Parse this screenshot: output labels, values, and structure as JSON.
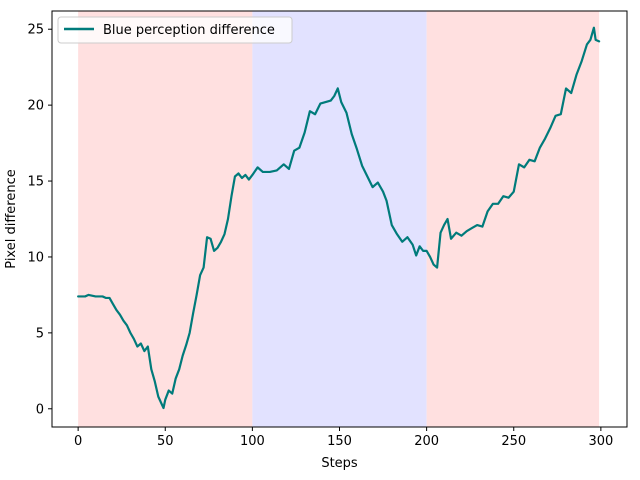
{
  "chart_data": {
    "type": "line",
    "title": "",
    "xlabel": "Steps",
    "ylabel": "Pixel difference",
    "xlim": [
      -15,
      315
    ],
    "ylim": [
      -1.2,
      26.2
    ],
    "xticks": [
      0,
      50,
      100,
      150,
      200,
      250,
      300
    ],
    "yticks": [
      0,
      5,
      10,
      15,
      20,
      25
    ],
    "grid": false,
    "legend": "upper-left",
    "background_bands": [
      {
        "x0": 0,
        "x1": 100,
        "color": "#ffe0e0"
      },
      {
        "x0": 100,
        "x1": 200,
        "color": "#e2e2ff"
      },
      {
        "x0": 200,
        "x1": 299,
        "color": "#ffe0e0"
      }
    ],
    "series": [
      {
        "name": "Blue perception difference",
        "color": "#007b7b",
        "points": [
          [
            0,
            7.4
          ],
          [
            4,
            7.4
          ],
          [
            6,
            7.5
          ],
          [
            10,
            7.4
          ],
          [
            14,
            7.4
          ],
          [
            16,
            7.3
          ],
          [
            18,
            7.3
          ],
          [
            20,
            6.9
          ],
          [
            22,
            6.5
          ],
          [
            24,
            6.2
          ],
          [
            26,
            5.8
          ],
          [
            28,
            5.5
          ],
          [
            30,
            5.0
          ],
          [
            32,
            4.6
          ],
          [
            34,
            4.1
          ],
          [
            36,
            4.3
          ],
          [
            38,
            3.8
          ],
          [
            40,
            4.1
          ],
          [
            42,
            2.6
          ],
          [
            44,
            1.8
          ],
          [
            46,
            0.8
          ],
          [
            48,
            0.3
          ],
          [
            49,
            0.05
          ],
          [
            50,
            0.6
          ],
          [
            52,
            1.2
          ],
          [
            54,
            1.0
          ],
          [
            56,
            2.0
          ],
          [
            58,
            2.6
          ],
          [
            60,
            3.5
          ],
          [
            62,
            4.2
          ],
          [
            64,
            5.0
          ],
          [
            66,
            6.3
          ],
          [
            68,
            7.5
          ],
          [
            70,
            8.8
          ],
          [
            72,
            9.3
          ],
          [
            74,
            11.3
          ],
          [
            76,
            11.2
          ],
          [
            78,
            10.4
          ],
          [
            80,
            10.6
          ],
          [
            82,
            11.0
          ],
          [
            84,
            11.5
          ],
          [
            86,
            12.5
          ],
          [
            88,
            14.0
          ],
          [
            90,
            15.3
          ],
          [
            92,
            15.5
          ],
          [
            94,
            15.2
          ],
          [
            96,
            15.4
          ],
          [
            98,
            15.1
          ],
          [
            100,
            15.4
          ],
          [
            103,
            15.9
          ],
          [
            106,
            15.6
          ],
          [
            110,
            15.6
          ],
          [
            114,
            15.7
          ],
          [
            118,
            16.1
          ],
          [
            121,
            15.8
          ],
          [
            124,
            17.0
          ],
          [
            127,
            17.2
          ],
          [
            130,
            18.2
          ],
          [
            133,
            19.6
          ],
          [
            136,
            19.4
          ],
          [
            139,
            20.1
          ],
          [
            142,
            20.2
          ],
          [
            145,
            20.3
          ],
          [
            147,
            20.6
          ],
          [
            149,
            21.1
          ],
          [
            151,
            20.2
          ],
          [
            154,
            19.5
          ],
          [
            157,
            18.1
          ],
          [
            160,
            17.1
          ],
          [
            163,
            16.0
          ],
          [
            166,
            15.3
          ],
          [
            169,
            14.6
          ],
          [
            172,
            14.9
          ],
          [
            175,
            14.3
          ],
          [
            177,
            13.7
          ],
          [
            180,
            12.1
          ],
          [
            183,
            11.5
          ],
          [
            186,
            11.0
          ],
          [
            189,
            11.3
          ],
          [
            192,
            10.8
          ],
          [
            194,
            10.1
          ],
          [
            196,
            10.7
          ],
          [
            198,
            10.4
          ],
          [
            200,
            10.4
          ],
          [
            202,
            10.0
          ],
          [
            204,
            9.5
          ],
          [
            206,
            9.3
          ],
          [
            208,
            11.6
          ],
          [
            210,
            12.1
          ],
          [
            212,
            12.5
          ],
          [
            214,
            11.2
          ],
          [
            217,
            11.6
          ],
          [
            220,
            11.4
          ],
          [
            223,
            11.7
          ],
          [
            226,
            11.9
          ],
          [
            229,
            12.1
          ],
          [
            232,
            12.0
          ],
          [
            235,
            13.0
          ],
          [
            238,
            13.5
          ],
          [
            241,
            13.5
          ],
          [
            244,
            14.0
          ],
          [
            247,
            13.9
          ],
          [
            250,
            14.3
          ],
          [
            253,
            16.1
          ],
          [
            256,
            15.9
          ],
          [
            259,
            16.4
          ],
          [
            262,
            16.3
          ],
          [
            265,
            17.2
          ],
          [
            268,
            17.8
          ],
          [
            271,
            18.5
          ],
          [
            274,
            19.3
          ],
          [
            277,
            19.4
          ],
          [
            280,
            21.1
          ],
          [
            283,
            20.8
          ],
          [
            286,
            22.0
          ],
          [
            289,
            22.9
          ],
          [
            292,
            24.0
          ],
          [
            294,
            24.3
          ],
          [
            296,
            25.1
          ],
          [
            297,
            24.3
          ],
          [
            299,
            24.2
          ]
        ]
      }
    ]
  }
}
